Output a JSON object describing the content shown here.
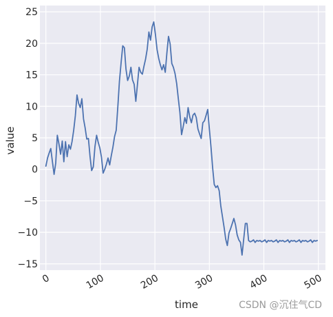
{
  "chart_data": {
    "type": "line",
    "xlabel": "time",
    "ylabel": "value",
    "xlim": [
      -11,
      513
    ],
    "ylim": [
      -16,
      26
    ],
    "xticks": [
      0,
      100,
      200,
      300,
      400,
      500
    ],
    "yticks": [
      -15,
      -10,
      -5,
      0,
      5,
      10,
      15,
      20,
      25
    ],
    "grid": true,
    "background": "#eaeaf2",
    "line_color": "#4c72b0",
    "series": [
      {
        "x": [
          0,
          3,
          6,
          9,
          12,
          15,
          18,
          21,
          24,
          27,
          30,
          33,
          36,
          39,
          42,
          45,
          48,
          51,
          54,
          57,
          60,
          63,
          66,
          69,
          72,
          75,
          78,
          81,
          84,
          87,
          90,
          93,
          96,
          99,
          102,
          105,
          108,
          111,
          114,
          117,
          120,
          123,
          126,
          129,
          132,
          135,
          138,
          141,
          144,
          147,
          150,
          153,
          156,
          159,
          162,
          165,
          168,
          171,
          174,
          177,
          180,
          183,
          186,
          189,
          192,
          195,
          198,
          201,
          204,
          207,
          210,
          213,
          216,
          219,
          222,
          225,
          228,
          231,
          234,
          237,
          240,
          243,
          246,
          249,
          252,
          255,
          258,
          261,
          264,
          267,
          270,
          273,
          276,
          279,
          282,
          285,
          288,
          291,
          294,
          297,
          300,
          303,
          306,
          309,
          312,
          315,
          318,
          321,
          324,
          327,
          330,
          333,
          336,
          339,
          342,
          345,
          348,
          351,
          354,
          357,
          360,
          363,
          366,
          369,
          372,
          375,
          378,
          381,
          384,
          387,
          390,
          393,
          396,
          399,
          402,
          405,
          408,
          411,
          414,
          417,
          420,
          423,
          426,
          429,
          432,
          435,
          438,
          441,
          444,
          447,
          450,
          453,
          456,
          459,
          462,
          465,
          468,
          471,
          474,
          477,
          480,
          483,
          486,
          489,
          492,
          495,
          498
        ],
        "y": [
          0.5,
          1.8,
          2.6,
          3.3,
          1.2,
          -0.8,
          1.0,
          5.4,
          4.0,
          2.4,
          4.5,
          1.2,
          4.4,
          2.0,
          3.9,
          3.2,
          4.4,
          6.2,
          8.5,
          11.8,
          10.5,
          9.8,
          11.2,
          8.0,
          6.6,
          4.8,
          4.9,
          2.0,
          -0.2,
          0.4,
          3.6,
          5.4,
          4.3,
          3.4,
          1.9,
          -0.6,
          0.0,
          0.8,
          1.8,
          0.7,
          2.2,
          3.5,
          5.2,
          6.2,
          10.0,
          14.0,
          16.9,
          19.6,
          19.3,
          15.9,
          14.1,
          14.8,
          16.2,
          14.2,
          13.5,
          10.8,
          13.5,
          16.2,
          15.4,
          15.1,
          16.4,
          17.5,
          19.1,
          21.8,
          20.5,
          22.6,
          23.4,
          21.4,
          19.0,
          17.6,
          16.6,
          15.8,
          16.6,
          15.4,
          18.4,
          21.1,
          19.9,
          16.8,
          16.2,
          15.2,
          13.6,
          11.2,
          9.0,
          5.5,
          6.8,
          8.2,
          7.3,
          9.8,
          8.3,
          7.4,
          8.6,
          8.9,
          8.2,
          6.4,
          5.6,
          4.9,
          7.4,
          7.7,
          8.6,
          9.5,
          6.4,
          3.5,
          0.2,
          -2.4,
          -2.9,
          -2.6,
          -3.4,
          -5.8,
          -7.5,
          -9.2,
          -11.1,
          -12.1,
          -10.1,
          -9.4,
          -8.6,
          -7.8,
          -8.8,
          -10.4,
          -11.2,
          -11.6,
          -13.6,
          -11.1,
          -8.6,
          -8.6,
          -11.3,
          -11.5,
          -11.4,
          -11.2,
          -11.6,
          -11.3,
          -11.4,
          -11.3,
          -11.5,
          -11.4,
          -11.2,
          -11.6,
          -11.3,
          -11.4,
          -11.3,
          -11.5,
          -11.4,
          -11.2,
          -11.6,
          -11.3,
          -11.4,
          -11.3,
          -11.5,
          -11.4,
          -11.2,
          -11.6,
          -11.3,
          -11.4,
          -11.3,
          -11.5,
          -11.4,
          -11.2,
          -11.6,
          -11.3,
          -11.4,
          -11.3,
          -11.5,
          -11.4,
          -11.2,
          -11.6,
          -11.3,
          -11.4,
          -11.3
        ]
      }
    ]
  },
  "watermark": "CSDN @沉住气CD"
}
